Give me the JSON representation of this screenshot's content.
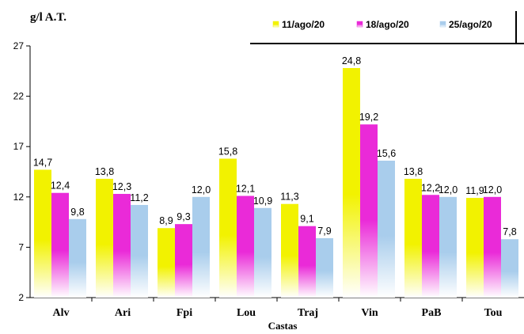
{
  "chart_data": {
    "type": "bar",
    "ylabel": "g/l A.T.",
    "xlabel": "Castas",
    "yticks": [
      2,
      7,
      12,
      17,
      22,
      27
    ],
    "ylim": [
      2,
      27
    ],
    "categories": [
      "Alv",
      "Ari",
      "Fpi",
      "Lou",
      "Traj",
      "Vin",
      "PaB",
      "Tou"
    ],
    "series": [
      {
        "name": "11/ago/20",
        "color": "#f2f200",
        "values": [
          14.7,
          13.8,
          8.9,
          15.8,
          11.3,
          24.8,
          13.8,
          11.9
        ],
        "labels": [
          "14,7",
          "13,8",
          "8,9",
          "15,8",
          "11,3",
          "24,8",
          "13,8",
          "11,9"
        ]
      },
      {
        "name": "18/ago/20",
        "color": "#ea2ad8",
        "values": [
          12.4,
          12.3,
          9.3,
          12.1,
          9.1,
          19.2,
          12.2,
          12.0
        ],
        "labels": [
          "12,4",
          "12,3",
          "9,3",
          "12,1",
          "9,1",
          "19,2",
          "12,2",
          "12,0"
        ]
      },
      {
        "name": "25/ago/20",
        "color": "#a9cdec",
        "values": [
          9.8,
          11.2,
          12.0,
          10.9,
          7.9,
          15.6,
          12.0,
          7.8
        ],
        "labels": [
          "9,8",
          "11,2",
          "12,0",
          "10,9",
          "7,9",
          "15,6",
          "12,0",
          "7,8"
        ]
      }
    ],
    "legend_position": "top-right",
    "grid": false
  }
}
